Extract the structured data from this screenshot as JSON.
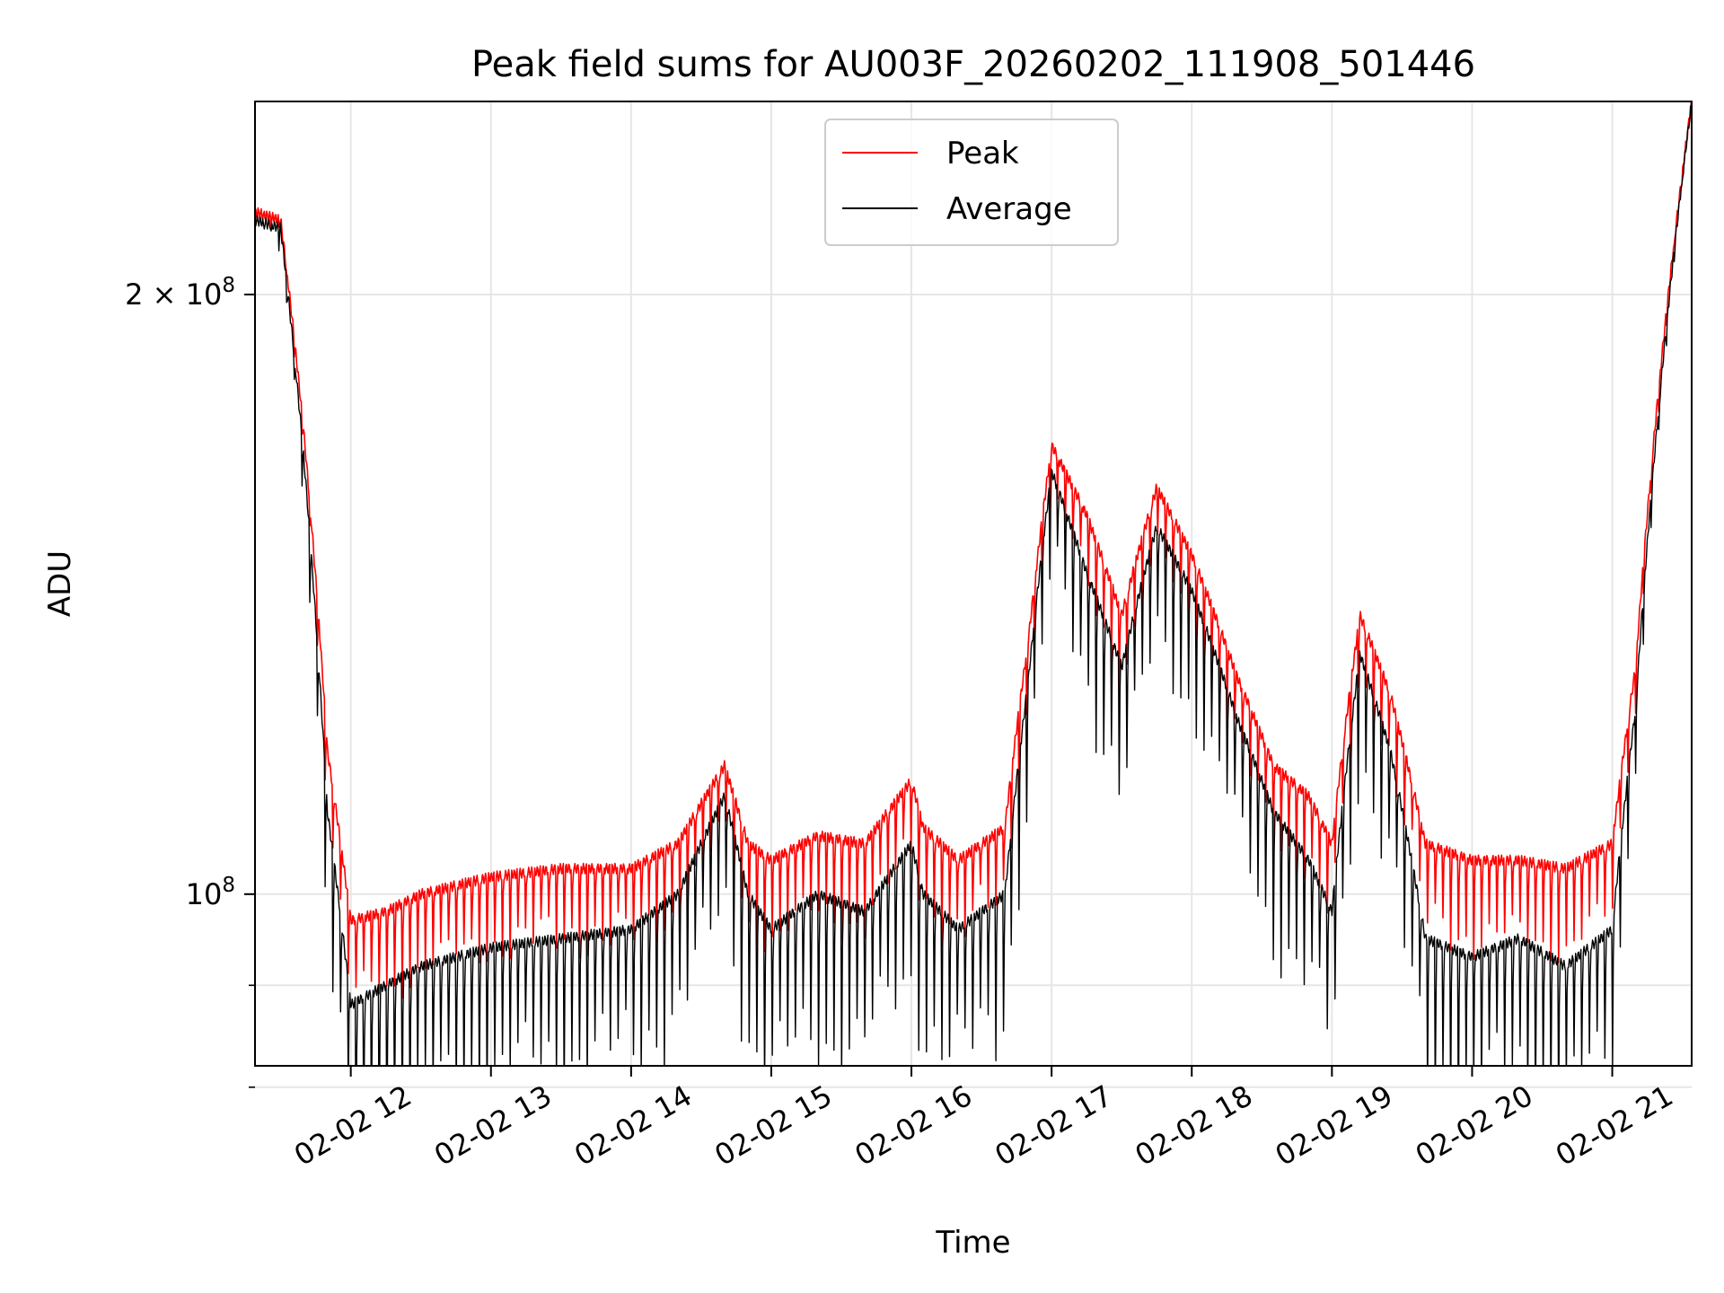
{
  "chart_data": {
    "type": "line",
    "title": "Peak field sums for AU003F_20260202_111908_501446",
    "xlabel": "Time",
    "ylabel": "ADU",
    "y_scale": "log",
    "ylim": [
      82000000,
      250000000
    ],
    "xlim": [
      "2026-02-02 11:19",
      "2026-02-02 21:34"
    ],
    "grid": true,
    "legend_position": "upper-center",
    "x_ticks": [
      {
        "t": "2026-02-02 12:00",
        "label": "02-02 12"
      },
      {
        "t": "2026-02-02 13:00",
        "label": "02-02 13"
      },
      {
        "t": "2026-02-02 14:00",
        "label": "02-02 14"
      },
      {
        "t": "2026-02-02 15:00",
        "label": "02-02 15"
      },
      {
        "t": "2026-02-02 16:00",
        "label": "02-02 16"
      },
      {
        "t": "2026-02-02 17:00",
        "label": "02-02 17"
      },
      {
        "t": "2026-02-02 18:00",
        "label": "02-02 18"
      },
      {
        "t": "2026-02-02 19:00",
        "label": "02-02 19"
      },
      {
        "t": "2026-02-02 20:00",
        "label": "02-02 20"
      },
      {
        "t": "2026-02-02 21:00",
        "label": "02-02 21"
      }
    ],
    "y_ticks": [
      {
        "value": 100000000,
        "label_base": "10",
        "label_exp": "8"
      },
      {
        "value": 200000000,
        "label_coef": "2",
        "label_base": "10",
        "label_exp": "8"
      }
    ],
    "y_minor_ticks": [
      80000000,
      90000000
    ],
    "series": [
      {
        "name": "Peak",
        "color": "#ff0000",
        "envelope": {
          "t": [
            "2026-02-02 11:19",
            "2026-02-02 11:30",
            "2026-02-02 11:40",
            "2026-02-02 11:50",
            "2026-02-02 12:00",
            "2026-02-02 12:15",
            "2026-02-02 12:30",
            "2026-02-02 13:00",
            "2026-02-02 13:30",
            "2026-02-02 14:00",
            "2026-02-02 14:20",
            "2026-02-02 14:40",
            "2026-02-02 14:50",
            "2026-02-02 15:00",
            "2026-02-02 15:20",
            "2026-02-02 15:40",
            "2026-02-02 16:00",
            "2026-02-02 16:05",
            "2026-02-02 16:20",
            "2026-02-02 16:40",
            "2026-02-02 16:50",
            "2026-02-02 17:00",
            "2026-02-02 17:15",
            "2026-02-02 17:30",
            "2026-02-02 17:45",
            "2026-02-02 18:00",
            "2026-02-02 18:20",
            "2026-02-02 18:35",
            "2026-02-02 18:50",
            "2026-02-02 19:00",
            "2026-02-02 19:12",
            "2026-02-02 19:25",
            "2026-02-02 19:40",
            "2026-02-02 20:00",
            "2026-02-02 20:20",
            "2026-02-02 20:40",
            "2026-02-02 21:00",
            "2026-02-02 21:10",
            "2026-02-02 21:20",
            "2026-02-02 21:34"
          ],
          "base": [
            220000000,
            218000000,
            170000000,
            118000000,
            97000000,
            98000000,
            100000000,
            102000000,
            103000000,
            103000000,
            106000000,
            116000000,
            106000000,
            104000000,
            107000000,
            106000000,
            114000000,
            108000000,
            104000000,
            108000000,
            134000000,
            168000000,
            155000000,
            138000000,
            160000000,
            148000000,
            128000000,
            116000000,
            112000000,
            106000000,
            138000000,
            126000000,
            106000000,
            104000000,
            104000000,
            103000000,
            106000000,
            130000000,
            180000000,
            250000000
          ],
          "dip": [
            0.0,
            0.01,
            0.02,
            0.06,
            0.085,
            0.085,
            0.08,
            0.075,
            0.075,
            0.075,
            0.075,
            0.07,
            0.085,
            0.085,
            0.085,
            0.085,
            0.08,
            0.08,
            0.08,
            0.075,
            0.07,
            0.065,
            0.07,
            0.075,
            0.07,
            0.07,
            0.075,
            0.075,
            0.08,
            0.085,
            0.07,
            0.07,
            0.085,
            0.085,
            0.085,
            0.085,
            0.08,
            0.04,
            0.02,
            0.0
          ]
        }
      },
      {
        "name": "Average",
        "color": "#000000",
        "envelope": {
          "t": [
            "2026-02-02 11:19",
            "2026-02-02 11:30",
            "2026-02-02 11:40",
            "2026-02-02 11:50",
            "2026-02-02 12:00",
            "2026-02-02 12:15",
            "2026-02-02 12:30",
            "2026-02-02 13:00",
            "2026-02-02 13:30",
            "2026-02-02 14:00",
            "2026-02-02 14:20",
            "2026-02-02 14:40",
            "2026-02-02 14:50",
            "2026-02-02 15:00",
            "2026-02-02 15:20",
            "2026-02-02 15:40",
            "2026-02-02 16:00",
            "2026-02-02 16:05",
            "2026-02-02 16:20",
            "2026-02-02 16:40",
            "2026-02-02 16:50",
            "2026-02-02 17:00",
            "2026-02-02 17:15",
            "2026-02-02 17:30",
            "2026-02-02 17:45",
            "2026-02-02 18:00",
            "2026-02-02 18:20",
            "2026-02-02 18:35",
            "2026-02-02 18:50",
            "2026-02-02 19:00",
            "2026-02-02 19:12",
            "2026-02-02 19:25",
            "2026-02-02 19:40",
            "2026-02-02 20:00",
            "2026-02-02 20:20",
            "2026-02-02 20:40",
            "2026-02-02 21:00",
            "2026-02-02 21:10",
            "2026-02-02 21:20",
            "2026-02-02 21:34"
          ],
          "base": [
            218000000,
            216000000,
            165000000,
            110000000,
            88000000,
            90000000,
            92000000,
            94000000,
            95000000,
            96000000,
            100000000,
            112000000,
            100000000,
            96000000,
            100000000,
            98000000,
            106000000,
            100000000,
            96000000,
            100000000,
            128000000,
            163000000,
            145000000,
            130000000,
            153000000,
            142000000,
            122000000,
            110000000,
            104000000,
            98000000,
            132000000,
            118000000,
            95000000,
            93000000,
            95000000,
            92000000,
            96000000,
            124000000,
            176000000,
            250000000
          ],
          "dip": [
            0.0,
            0.02,
            0.04,
            0.13,
            0.17,
            0.15,
            0.14,
            0.13,
            0.13,
            0.13,
            0.13,
            0.11,
            0.15,
            0.15,
            0.15,
            0.14,
            0.14,
            0.14,
            0.14,
            0.13,
            0.12,
            0.1,
            0.12,
            0.13,
            0.12,
            0.12,
            0.12,
            0.13,
            0.13,
            0.14,
            0.11,
            0.12,
            0.15,
            0.14,
            0.14,
            0.14,
            0.13,
            0.06,
            0.03,
            0.0
          ]
        }
      }
    ],
    "colors": {
      "grid": "#e6e6e6",
      "frame": "#000000",
      "legend_border": "#cccccc"
    }
  }
}
